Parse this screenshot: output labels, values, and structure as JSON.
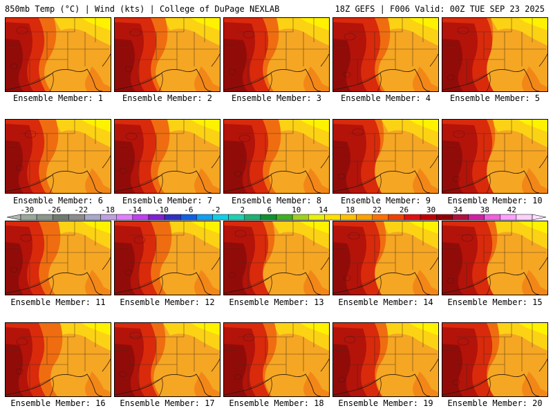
{
  "header": {
    "title_left": "850mb Temp (°C) | Wind (kts) | College of DuPage NEXLAB",
    "title_right": "18Z GEFS | F006 Valid: 00Z TUE SEP 23 2025"
  },
  "panels": [
    {
      "label": "Ensemble Member: 1"
    },
    {
      "label": "Ensemble Member: 2"
    },
    {
      "label": "Ensemble Member: 3"
    },
    {
      "label": "Ensemble Member: 4"
    },
    {
      "label": "Ensemble Member: 5"
    },
    {
      "label": "Ensemble Member: 6"
    },
    {
      "label": "Ensemble Member: 7"
    },
    {
      "label": "Ensemble Member: 8"
    },
    {
      "label": "Ensemble Member: 9"
    },
    {
      "label": "Ensemble Member: 10"
    },
    {
      "label": "Ensemble Member: 11"
    },
    {
      "label": "Ensemble Member: 12"
    },
    {
      "label": "Ensemble Member: 13"
    },
    {
      "label": "Ensemble Member: 14"
    },
    {
      "label": "Ensemble Member: 15"
    },
    {
      "label": "Ensemble Member: 16"
    },
    {
      "label": "Ensemble Member: 17"
    },
    {
      "label": "Ensemble Member: 18"
    },
    {
      "label": "Ensemble Member: 19"
    },
    {
      "label": "Ensemble Member: 20"
    }
  ],
  "colorbar": {
    "ticks": [
      "-30",
      "-26",
      "-22",
      "-18",
      "-14",
      "-10",
      "-6",
      "-2",
      "2",
      "6",
      "10",
      "14",
      "18",
      "22",
      "26",
      "30",
      "34",
      "38",
      "42"
    ],
    "colors": [
      "#9aa89a",
      "#8a968a",
      "#707a70",
      "#8c8c8c",
      "#a8a8c8",
      "#c0a0e0",
      "#e080ff",
      "#c040f0",
      "#8020d0",
      "#3030c0",
      "#1060e0",
      "#10a0f0",
      "#10d0e8",
      "#20d0b0",
      "#20b070",
      "#109030",
      "#40b020",
      "#a0d020",
      "#e8f010",
      "#ffe000",
      "#ffc000",
      "#ffa000",
      "#ff7000",
      "#f04000",
      "#e01010",
      "#c00000",
      "#900000",
      "#b01040",
      "#d020a0",
      "#f060e0",
      "#ffa0ff",
      "#ffd0ff"
    ]
  },
  "map_colors": {
    "base": "#f5a623",
    "warm1": "#ef6d10",
    "warm2": "#d92a0c",
    "warm3": "#ad0f0a",
    "cool1": "#fcd215",
    "cool2": "#fff200"
  }
}
